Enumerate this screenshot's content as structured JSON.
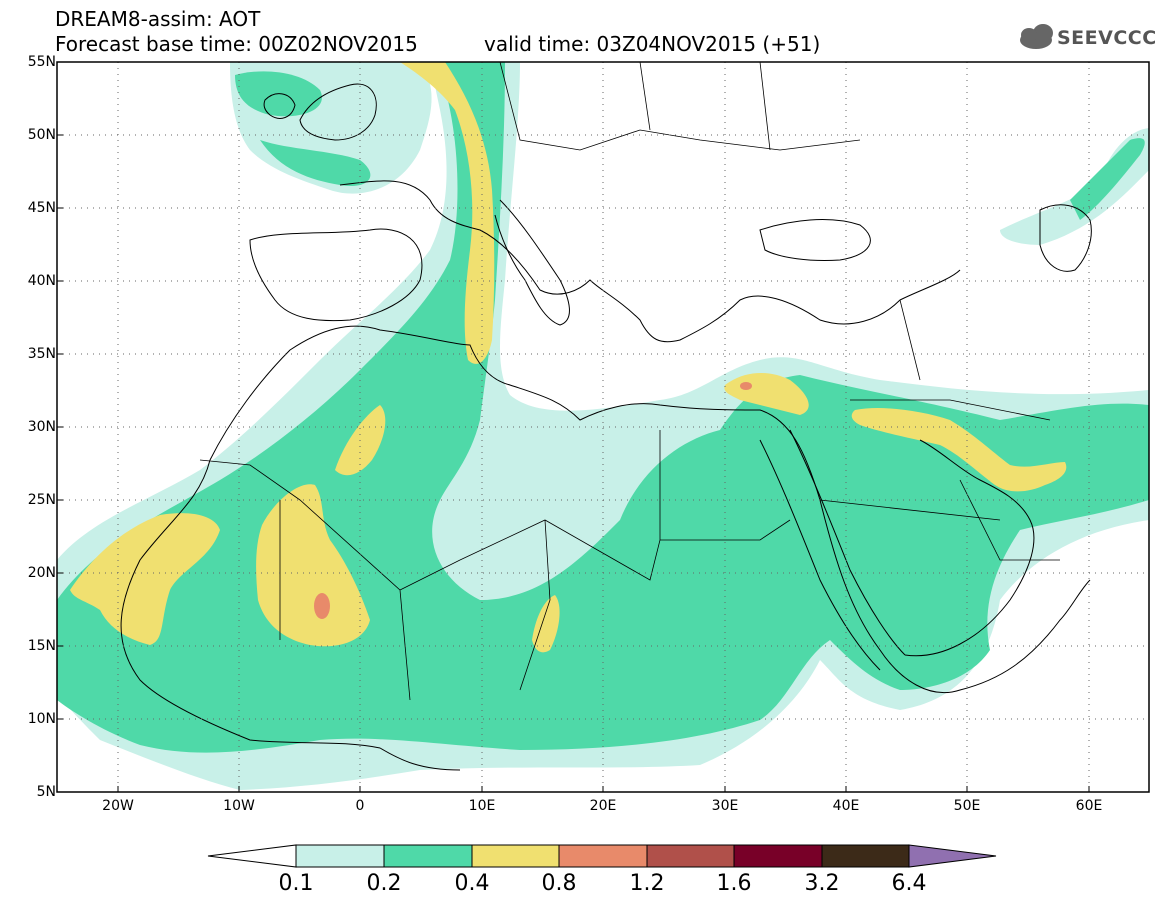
{
  "header": {
    "title": "DREAM8-assim: AOT",
    "base_time": "Forecast base time: 00Z02NOV2015",
    "valid_time": "valid time: 03Z04NOV2015 (+51)",
    "logo_text": "SEEVCCC"
  },
  "map": {
    "projection": "lat-lon",
    "lon_range": [
      -25,
      65
    ],
    "lat_range": [
      5,
      55
    ],
    "lat_labels": [
      "55N",
      "50N",
      "45N",
      "40N",
      "35N",
      "30N",
      "25N",
      "20N",
      "15N",
      "10N",
      "5N"
    ],
    "lon_labels": [
      "20W",
      "10W",
      "0",
      "10E",
      "20E",
      "30E",
      "40E",
      "50E",
      "60E"
    ],
    "grid": "dotted"
  },
  "legend": {
    "levels": [
      "0.1",
      "0.2",
      "0.4",
      "0.8",
      "1.2",
      "1.6",
      "3.2",
      "6.4"
    ],
    "colors": [
      "#c8f0e8",
      "#4fd9a8",
      "#f0e070",
      "#e88a6a",
      "#b0504a",
      "#780028",
      "#3c2a18",
      "#9070b0"
    ],
    "under_color": "#ffffff"
  }
}
